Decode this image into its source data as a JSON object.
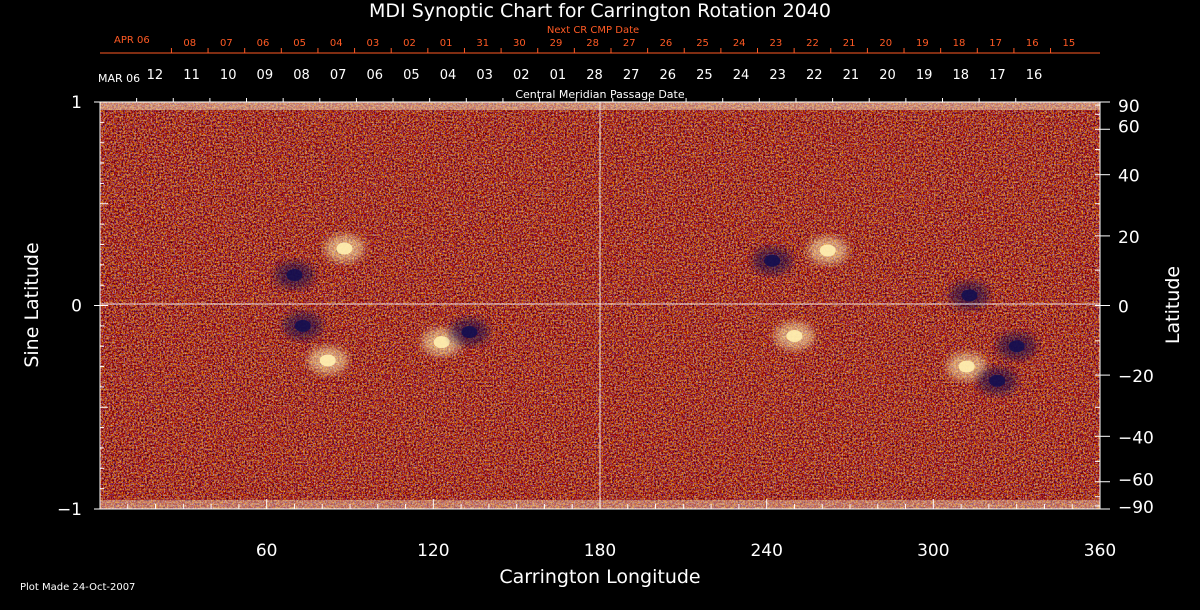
{
  "chart_data": {
    "type": "heatmap",
    "title": "MDI Synoptic Chart for Carrington Rotation 2040",
    "xlabel": "Carrington Longitude",
    "ylabel_left": "Sine Latitude",
    "ylabel_right": "Latitude",
    "xlim": [
      0,
      360
    ],
    "ylim": [
      -1,
      1
    ],
    "x_ticks": [
      60,
      120,
      180,
      240,
      300,
      360
    ],
    "y_ticks_left": [
      {
        "v": 1,
        "label": "1"
      },
      {
        "v": 0,
        "label": "0"
      },
      {
        "v": -1,
        "label": "−1"
      }
    ],
    "y_ticks_right": [
      "90",
      "60",
      "40",
      "20",
      "0",
      "−20",
      "−40",
      "−60",
      "−90"
    ],
    "y_ticks_right_values": [
      90,
      60,
      40,
      20,
      0,
      -20,
      -40,
      -60,
      -90
    ],
    "cmp_axis_label": "Central Meridian Passage Date",
    "cmp_start_label": "MAR 06",
    "cmp_dates": [
      "12",
      "11",
      "10",
      "09",
      "08",
      "07",
      "06",
      "05",
      "04",
      "03",
      "02",
      "01",
      "28",
      "27",
      "26",
      "25",
      "24",
      "23",
      "22",
      "21",
      "20",
      "19",
      "18",
      "17",
      "16"
    ],
    "next_cr_label": "Next CR CMP Date",
    "next_start_label": "APR 06",
    "next_dates": [
      "08",
      "07",
      "06",
      "05",
      "04",
      "03",
      "02",
      "01",
      "31",
      "30",
      "29",
      "28",
      "27",
      "26",
      "25",
      "24",
      "23",
      "22",
      "21",
      "20",
      "19",
      "18",
      "17",
      "16",
      "15"
    ],
    "magnetic_regions": [
      {
        "lon": 70,
        "sinlat": 0.15,
        "polarity": "negative"
      },
      {
        "lon": 88,
        "sinlat": 0.28,
        "polarity": "positive"
      },
      {
        "lon": 73,
        "sinlat": -0.1,
        "polarity": "negative"
      },
      {
        "lon": 82,
        "sinlat": -0.27,
        "polarity": "positive"
      },
      {
        "lon": 123,
        "sinlat": -0.18,
        "polarity": "positive"
      },
      {
        "lon": 133,
        "sinlat": -0.13,
        "polarity": "negative"
      },
      {
        "lon": 242,
        "sinlat": 0.22,
        "polarity": "negative"
      },
      {
        "lon": 262,
        "sinlat": 0.27,
        "polarity": "positive"
      },
      {
        "lon": 250,
        "sinlat": -0.15,
        "polarity": "positive"
      },
      {
        "lon": 313,
        "sinlat": 0.05,
        "polarity": "negative"
      },
      {
        "lon": 312,
        "sinlat": -0.3,
        "polarity": "positive"
      },
      {
        "lon": 323,
        "sinlat": -0.37,
        "polarity": "negative"
      },
      {
        "lon": 330,
        "sinlat": -0.2,
        "polarity": "negative"
      }
    ],
    "colors": {
      "background": "#000000",
      "field_base": "#d6300c",
      "positive": "#fff0b0",
      "negative": "#140e50",
      "next_cr": "#ff5a24",
      "axes": "#ffffff"
    }
  },
  "footer": {
    "plot_made": "Plot Made 24-Oct-2007"
  }
}
